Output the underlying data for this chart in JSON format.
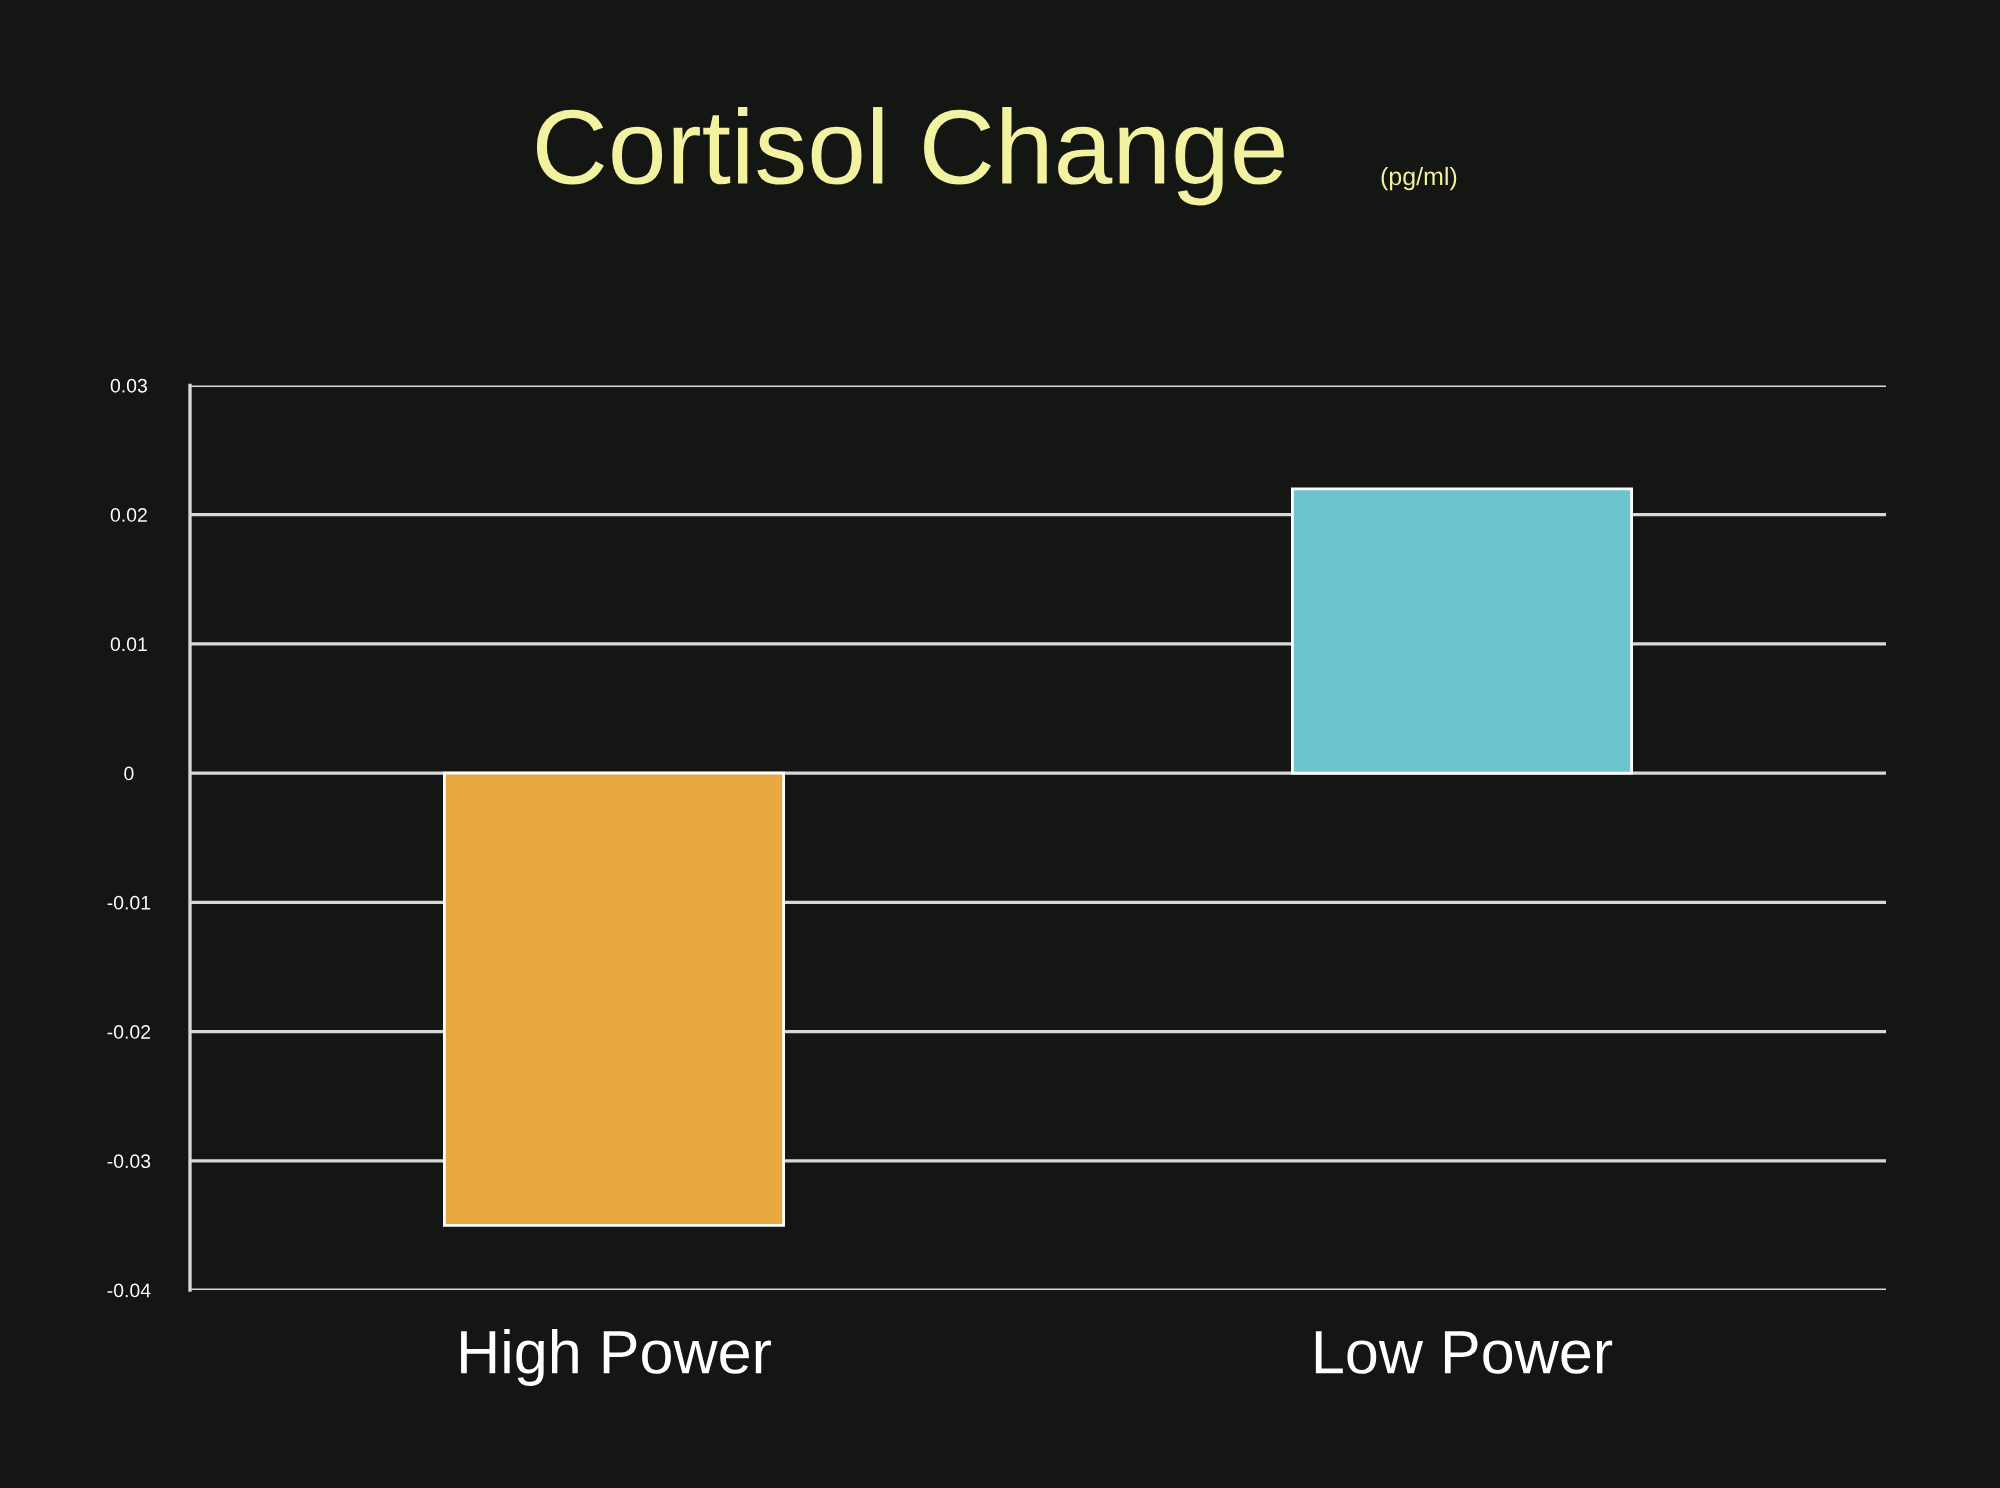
{
  "chart_data": {
    "type": "bar",
    "title": "Cortisol Change",
    "subtitle": "(pg/ml)",
    "categories": [
      "High Power",
      "Low Power"
    ],
    "values": [
      -0.035,
      0.022
    ],
    "colors": [
      "#e8a840",
      "#6cc4cf"
    ],
    "ylim": [
      -0.04,
      0.03
    ],
    "yticks": [
      {
        "value": -0.04,
        "label": "-0.04"
      },
      {
        "value": -0.03,
        "label": "-0.03"
      },
      {
        "value": -0.02,
        "label": "-0.02"
      },
      {
        "value": -0.01,
        "label": "-0.01"
      },
      0,
      0.01,
      0.02,
      0.03
    ],
    "grid": "y"
  }
}
